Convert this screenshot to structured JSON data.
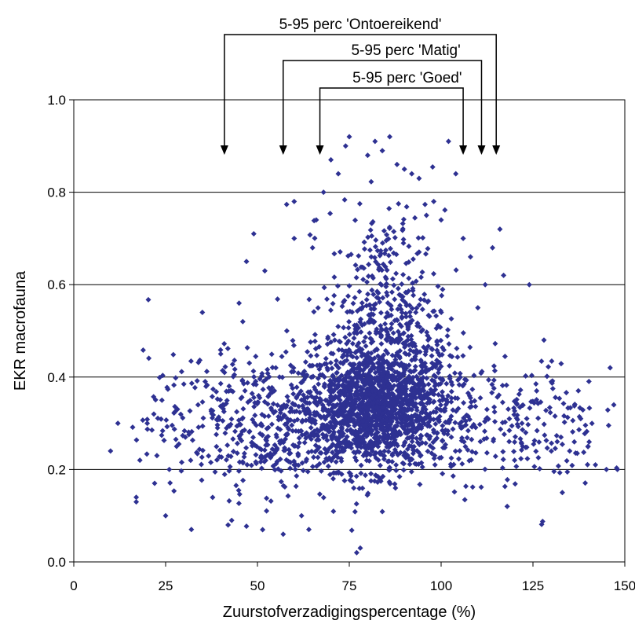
{
  "chart_data": {
    "type": "scatter",
    "title": "",
    "xlabel": "Zuurstofverzadigingspercentage (%)",
    "ylabel": "EKR macrofauna",
    "xlim": [
      0,
      150
    ],
    "ylim": [
      0.0,
      1.0
    ],
    "x_ticks": [
      "0",
      "25",
      "50",
      "75",
      "100",
      "125",
      "150"
    ],
    "y_ticks": [
      "0.0",
      "0.2",
      "0.4",
      "0.6",
      "0.8",
      "1.0"
    ],
    "grid": "horizontal",
    "marker_color": "#2e3192",
    "marker_shape": "diamond",
    "point_count_estimate": 2600,
    "distribution_description": "dense cloud centred around x 70-95, y 0.25-0.45; spread from x 10 to 148, y 0.02 to 0.92",
    "annotations": [
      {
        "label": "5-95 perc 'Ontoereikend'",
        "x_start": 41,
        "x_end": 115
      },
      {
        "label": "5-95 perc 'Matig'",
        "x_start": 57,
        "x_end": 111
      },
      {
        "label": "5-95 perc 'Goed'",
        "x_start": 67,
        "x_end": 106
      }
    ],
    "series": [
      {
        "values": [
          [
            10,
            0.24
          ],
          [
            12,
            0.3
          ],
          [
            17,
            0.14
          ],
          [
            17,
            0.13
          ],
          [
            18,
            0.22
          ],
          [
            20,
            0.3
          ],
          [
            22,
            0.17
          ],
          [
            24,
            0.35
          ],
          [
            25,
            0.1
          ],
          [
            26,
            0.2
          ],
          [
            28,
            0.25
          ],
          [
            32,
            0.07
          ],
          [
            35,
            0.54
          ],
          [
            36,
            0.38
          ],
          [
            40,
            0.45
          ],
          [
            42,
            0.08
          ],
          [
            43,
            0.09
          ],
          [
            45,
            0.56
          ],
          [
            46,
            0.52
          ],
          [
            47,
            0.65
          ],
          [
            49,
            0.71
          ],
          [
            52,
            0.63
          ],
          [
            55,
            0.42
          ],
          [
            56,
            0.4
          ],
          [
            57,
            0.06
          ],
          [
            58,
            0.5
          ],
          [
            60,
            0.78
          ],
          [
            60,
            0.7
          ],
          [
            62,
            0.1
          ],
          [
            64,
            0.07
          ],
          [
            65,
            0.68
          ],
          [
            66,
            0.74
          ],
          [
            68,
            0.8
          ],
          [
            70,
            0.87
          ],
          [
            72,
            0.84
          ],
          [
            74,
            0.9
          ],
          [
            75,
            0.92
          ],
          [
            77,
            0.02
          ],
          [
            78,
            0.03
          ],
          [
            80,
            0.88
          ],
          [
            82,
            0.91
          ],
          [
            84,
            0.89
          ],
          [
            86,
            0.92
          ],
          [
            88,
            0.86
          ],
          [
            90,
            0.85
          ],
          [
            92,
            0.84
          ],
          [
            94,
            0.83
          ],
          [
            96,
            0.75
          ],
          [
            98,
            0.78
          ],
          [
            100,
            0.74
          ],
          [
            102,
            0.91
          ],
          [
            104,
            0.84
          ],
          [
            106,
            0.7
          ],
          [
            108,
            0.66
          ],
          [
            110,
            0.55
          ],
          [
            112,
            0.6
          ],
          [
            114,
            0.68
          ],
          [
            116,
            0.72
          ],
          [
            117,
            0.62
          ],
          [
            118,
            0.12
          ],
          [
            120,
            0.22
          ],
          [
            122,
            0.3
          ],
          [
            124,
            0.6
          ],
          [
            126,
            0.37
          ],
          [
            128,
            0.48
          ],
          [
            130,
            0.39
          ],
          [
            133,
            0.15
          ],
          [
            135,
            0.24
          ],
          [
            138,
            0.31
          ],
          [
            140,
            0.25
          ],
          [
            142,
            0.21
          ],
          [
            145,
            0.2
          ],
          [
            146,
            0.42
          ],
          [
            147,
            0.34
          ],
          [
            148,
            0.2
          ]
        ]
      }
    ]
  }
}
